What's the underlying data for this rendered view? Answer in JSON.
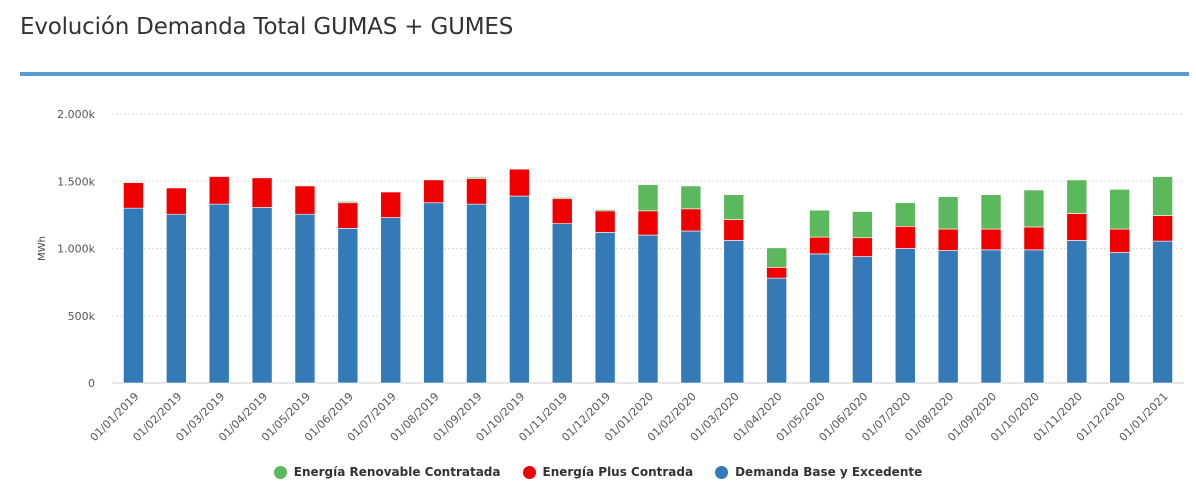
{
  "title": "Evolución Demanda Total GUMAS + GUMES",
  "colors": {
    "accent_rule": "#5b9bd5",
    "renovable": "#5cb85c",
    "plus": "#ee0000",
    "base": "#337ab7"
  },
  "chart_data": {
    "type": "bar",
    "stacked": true,
    "title": "Evolución Demanda Total GUMAS + GUMES",
    "xlabel": "",
    "ylabel": "MWh",
    "ylim": [
      0,
      2000
    ],
    "grid": true,
    "legend_position": "bottom",
    "y_ticks": [
      0,
      500,
      1000,
      1500,
      2000
    ],
    "y_tick_labels": [
      "0",
      "500k",
      "1.000k",
      "1.500k",
      "2.000k"
    ],
    "categories": [
      "01/01/2019",
      "01/02/2019",
      "01/03/2019",
      "01/04/2019",
      "01/05/2019",
      "01/06/2019",
      "01/07/2019",
      "01/08/2019",
      "01/09/2019",
      "01/10/2019",
      "01/11/2019",
      "01/12/2019",
      "01/01/2020",
      "01/02/2020",
      "01/03/2020",
      "01/04/2020",
      "01/05/2020",
      "01/06/2020",
      "01/07/2020",
      "01/08/2020",
      "01/09/2020",
      "01/10/2020",
      "01/11/2020",
      "01/12/2020",
      "01/01/2021"
    ],
    "series": [
      {
        "name": "Demanda Base y Excedente",
        "color": "#337ab7",
        "values": [
          1300,
          1255,
          1330,
          1305,
          1255,
          1150,
          1230,
          1340,
          1330,
          1390,
          1185,
          1120,
          1100,
          1130,
          1060,
          780,
          960,
          940,
          1000,
          985,
          990,
          990,
          1060,
          970,
          1055
        ]
      },
      {
        "name": "Energía Plus Contrada",
        "color": "#ee0000",
        "values": [
          190,
          195,
          205,
          220,
          210,
          190,
          190,
          170,
          190,
          200,
          185,
          160,
          180,
          165,
          155,
          80,
          125,
          140,
          165,
          160,
          155,
          170,
          200,
          175,
          190
        ]
      },
      {
        "name": "Energía Renovable Contratada",
        "color": "#5cb85c",
        "values": [
          0,
          0,
          0,
          0,
          0,
          10,
          0,
          0,
          10,
          0,
          10,
          10,
          195,
          170,
          185,
          145,
          200,
          195,
          175,
          240,
          255,
          275,
          250,
          295,
          290
        ]
      }
    ]
  },
  "legend": [
    {
      "label": "Energía Renovable Contratada",
      "color": "#5cb85c"
    },
    {
      "label": "Energía Plus Contrada",
      "color": "#ee0000"
    },
    {
      "label": "Demanda Base y Excedente",
      "color": "#337ab7"
    }
  ]
}
